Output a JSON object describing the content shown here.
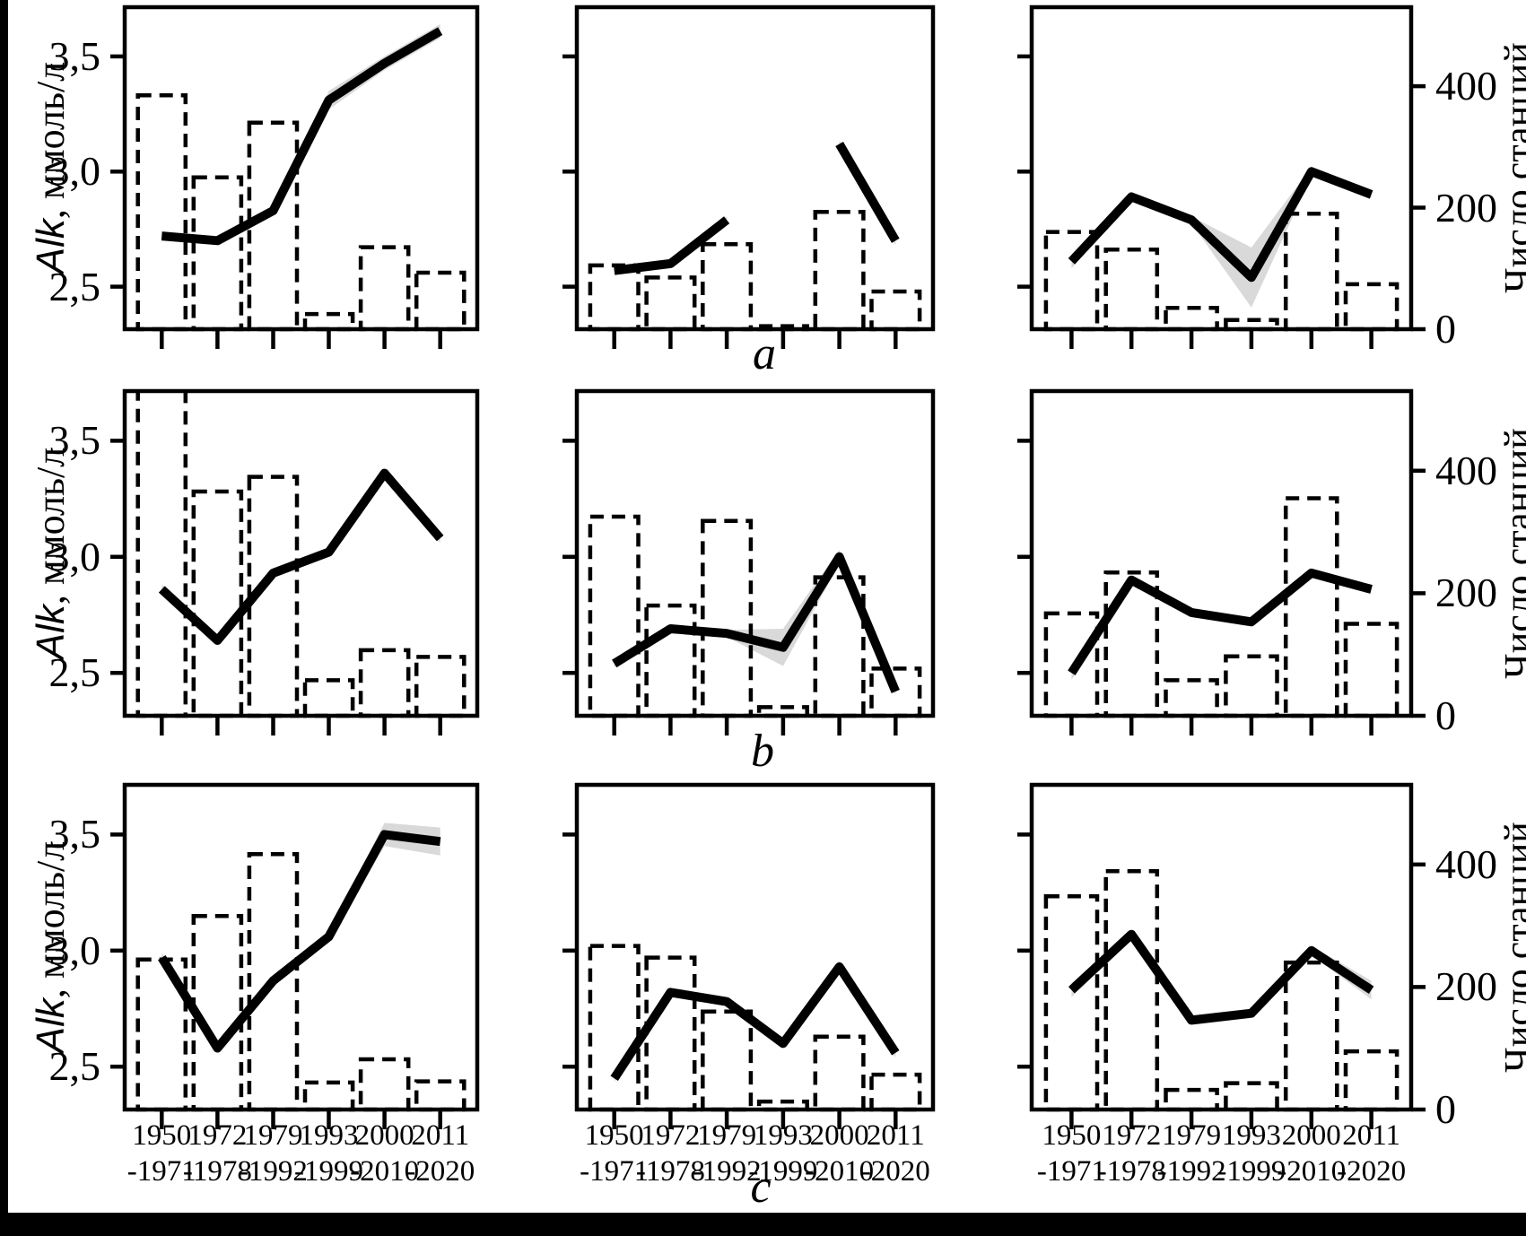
{
  "figure": {
    "bg": "#ffffff",
    "ink": "#000000",
    "band_color": "#d9d9d9",
    "strip_color": "#000000",
    "left_axis": {
      "label_italic": "Alk",
      "label_rest": ", ммоль/л",
      "ticks": [
        "3,5",
        "3,0",
        "2,5"
      ],
      "tick_values": [
        3.5,
        3.0,
        2.5
      ],
      "range": [
        2.32,
        3.71
      ]
    },
    "right_axis": {
      "label": "Число станций",
      "ticks": [
        "400",
        "200",
        "0"
      ],
      "tick_values": [
        400,
        200,
        0
      ],
      "range": [
        0,
        530
      ]
    },
    "x_axis": {
      "tick_labels": [
        [
          "1950",
          "-1971"
        ],
        [
          "1972",
          "-1978"
        ],
        [
          "1979",
          "-1992"
        ],
        [
          "1993",
          "-1999"
        ],
        [
          "2000",
          "-2010"
        ],
        [
          "2011",
          "-2020"
        ]
      ]
    },
    "row_labels": [
      "a",
      "b",
      "c"
    ]
  },
  "chart_data": [
    {
      "id": "a-left",
      "row": "a",
      "col": "left",
      "type": "line+bar",
      "categories": [
        "1950-1971",
        "1972-1978",
        "1979-1992",
        "1993-1999",
        "2000-2010",
        "2011-2020"
      ],
      "alk_line": [
        2.72,
        2.7,
        2.83,
        3.31,
        3.47,
        3.61
      ],
      "stations_bars": [
        385,
        250,
        340,
        25,
        135,
        93
      ],
      "band": [
        0.015,
        0.015,
        0.015,
        0.04,
        0.03,
        0.03
      ]
    },
    {
      "id": "a-middle",
      "row": "a",
      "col": "middle",
      "type": "line+bar",
      "categories": [
        "1950-1971",
        "1972-1978",
        "1979-1992",
        "1993-1999",
        "2000-2010",
        "2011-2020"
      ],
      "alk_line": [
        2.57,
        2.6,
        2.79,
        null,
        3.12,
        2.7
      ],
      "stations_bars": [
        105,
        85,
        140,
        5,
        193,
        62
      ],
      "band": [
        0.015,
        0.015,
        0.015,
        null,
        0.015,
        0.02
      ]
    },
    {
      "id": "a-right",
      "row": "a",
      "col": "right",
      "type": "line+bar",
      "categories": [
        "1950-1971",
        "1972-1978",
        "1979-1992",
        "1993-1999",
        "2000-2010",
        "2011-2020"
      ],
      "alk_line": [
        2.61,
        2.89,
        2.79,
        2.54,
        3.0,
        2.9
      ],
      "stations_bars": [
        160,
        131,
        35,
        15,
        190,
        74
      ],
      "band": [
        0.03,
        0.015,
        0.015,
        0.13,
        0.02,
        0.015
      ]
    },
    {
      "id": "b-left",
      "row": "b",
      "col": "left",
      "type": "line+bar",
      "categories": [
        "1950-1971",
        "1972-1978",
        "1979-1992",
        "1993-1999",
        "2000-2010",
        "2011-2020"
      ],
      "alk_line": [
        2.86,
        2.64,
        2.93,
        3.02,
        3.36,
        3.08
      ],
      "stations_bars": [
        560,
        366,
        390,
        58,
        107,
        96
      ],
      "band": [
        0.02,
        0.015,
        0.015,
        0.015,
        0.02,
        0.02
      ]
    },
    {
      "id": "b-middle",
      "row": "b",
      "col": "middle",
      "type": "line+bar",
      "categories": [
        "1950-1971",
        "1972-1978",
        "1979-1992",
        "1993-1999",
        "2000-2010",
        "2011-2020"
      ],
      "alk_line": [
        2.54,
        2.69,
        2.67,
        2.61,
        3.0,
        2.42
      ],
      "stations_bars": [
        325,
        180,
        318,
        14,
        226,
        77
      ],
      "band": [
        0.015,
        0.015,
        0.015,
        0.08,
        0.03,
        0.015
      ]
    },
    {
      "id": "b-right",
      "row": "b",
      "col": "right",
      "type": "line+bar",
      "categories": [
        "1950-1971",
        "1972-1978",
        "1979-1992",
        "1993-1999",
        "2000-2010",
        "2011-2020"
      ],
      "alk_line": [
        2.5,
        2.9,
        2.76,
        2.72,
        2.93,
        2.86
      ],
      "stations_bars": [
        167,
        234,
        58,
        97,
        355,
        150
      ],
      "band": [
        0.03,
        0.02,
        0.015,
        0.015,
        0.015,
        0.015
      ]
    },
    {
      "id": "c-left",
      "row": "c",
      "col": "left",
      "type": "line+bar",
      "categories": [
        "1950-1971",
        "1972-1978",
        "1979-1992",
        "1993-1999",
        "2000-2010",
        "2011-2020"
      ],
      "alk_line": [
        2.97,
        2.58,
        2.87,
        3.06,
        3.5,
        3.47
      ],
      "stations_bars": [
        245,
        316,
        417,
        44,
        82,
        46
      ],
      "band": [
        0.02,
        0.015,
        0.02,
        0.02,
        0.05,
        0.06
      ]
    },
    {
      "id": "c-middle",
      "row": "c",
      "col": "middle",
      "type": "line+bar",
      "categories": [
        "1950-1971",
        "1972-1978",
        "1979-1992",
        "1993-1999",
        "2000-2010",
        "2011-2020"
      ],
      "alk_line": [
        2.45,
        2.82,
        2.78,
        2.6,
        2.93,
        2.56
      ],
      "stations_bars": [
        267,
        248,
        160,
        13,
        119,
        57
      ],
      "band": [
        0.015,
        0.02,
        0.02,
        0.02,
        0.025,
        0.02
      ]
    },
    {
      "id": "c-right",
      "row": "c",
      "col": "right",
      "type": "line+bar",
      "categories": [
        "1950-1971",
        "1972-1978",
        "1979-1992",
        "1993-1999",
        "2000-2010",
        "2011-2020"
      ],
      "alk_line": [
        2.83,
        3.07,
        2.7,
        2.73,
        3.0,
        2.83
      ],
      "stations_bars": [
        348,
        389,
        32,
        43,
        240,
        95
      ],
      "band": [
        0.03,
        0.02,
        0.02,
        0.02,
        0.02,
        0.04
      ]
    }
  ]
}
